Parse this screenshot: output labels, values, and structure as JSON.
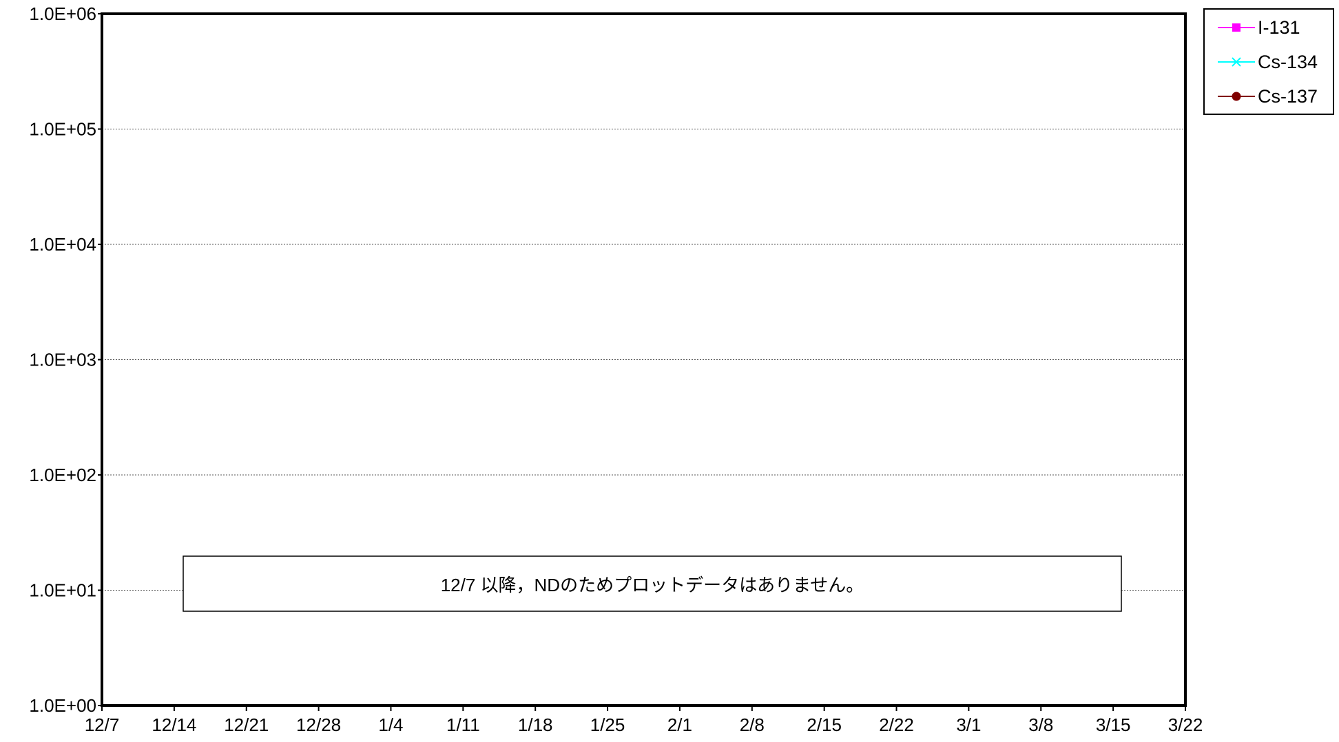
{
  "chart_data": {
    "type": "line",
    "title": "",
    "xlabel": "",
    "ylabel": "",
    "y_scale": "log",
    "ylim": [
      1,
      1000000
    ],
    "y_ticks": [
      "1.0E+00",
      "1.0E+01",
      "1.0E+02",
      "1.0E+03",
      "1.0E+04",
      "1.0E+05",
      "1.0E+06"
    ],
    "x_ticks": [
      "12/7",
      "12/14",
      "12/21",
      "12/28",
      "1/4",
      "1/11",
      "1/18",
      "1/25",
      "2/1",
      "2/8",
      "2/15",
      "2/22",
      "3/1",
      "3/8",
      "3/15",
      "3/22"
    ],
    "grid": true,
    "legend_position": "top-right",
    "series": [
      {
        "name": "I-131",
        "color": "#ff00ff",
        "marker": "square",
        "values": []
      },
      {
        "name": "Cs-134",
        "color": "#00ffff",
        "marker": "x",
        "values": []
      },
      {
        "name": "Cs-137",
        "color": "#800000",
        "marker": "circle",
        "values": []
      }
    ],
    "annotation": "12/7 以降，NDのためプロットデータはありません。"
  }
}
